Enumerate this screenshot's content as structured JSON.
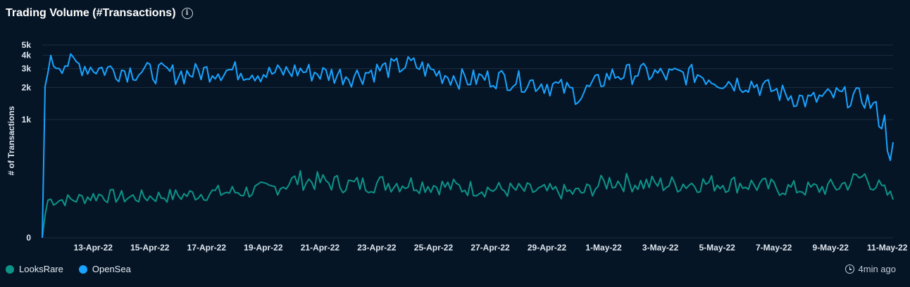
{
  "header": {
    "title": "Trading Volume (#Transactions)",
    "info_icon": "info-icon"
  },
  "updated": {
    "icon": "clock-icon",
    "label": "4min ago"
  },
  "chart_data": {
    "type": "line",
    "title": "Trading Volume (#Transactions)",
    "ylabel": "# of Transactions",
    "xlabel": "",
    "y_scale": "log-like (0 baseline, 1k–5k log ticks)",
    "y_ticks": [
      "0",
      "1k",
      "2k",
      "3k",
      "4k",
      "5k"
    ],
    "x_ticks": [
      "13-Apr-22",
      "15-Apr-22",
      "17-Apr-22",
      "19-Apr-22",
      "21-Apr-22",
      "23-Apr-22",
      "25-Apr-22",
      "27-Apr-22",
      "29-Apr-22",
      "1-May-22",
      "3-May-22",
      "5-May-22",
      "7-May-22",
      "9-May-22",
      "11-May-22"
    ],
    "x_range": [
      "2022-04-12",
      "2022-05-12"
    ],
    "grid": true,
    "legend_position": "bottom-left",
    "series": [
      {
        "name": "LooksRare",
        "color": "#0d9488",
        "x": [
          "2022-04-12",
          "2022-04-13",
          "2022-04-14",
          "2022-04-15",
          "2022-04-16",
          "2022-04-17",
          "2022-04-18",
          "2022-04-19",
          "2022-04-20",
          "2022-04-21",
          "2022-04-22",
          "2022-04-23",
          "2022-04-24",
          "2022-04-25",
          "2022-04-26",
          "2022-04-27",
          "2022-04-28",
          "2022-04-29",
          "2022-04-30",
          "2022-05-01",
          "2022-05-02",
          "2022-05-03",
          "2022-05-04",
          "2022-05-05",
          "2022-05-06",
          "2022-05-07",
          "2022-05-08",
          "2022-05-09",
          "2022-05-10",
          "2022-05-11",
          "2022-05-12"
        ],
        "values": [
          0,
          320,
          360,
          340,
          350,
          360,
          380,
          390,
          410,
          490,
          470,
          450,
          460,
          460,
          440,
          420,
          410,
          400,
          390,
          380,
          480,
          460,
          450,
          460,
          460,
          450,
          420,
          410,
          430,
          520,
          330
        ]
      },
      {
        "name": "OpenSea",
        "color": "#1aa3ff",
        "x": [
          "2022-04-12",
          "2022-04-13",
          "2022-04-14",
          "2022-04-15",
          "2022-04-16",
          "2022-04-17",
          "2022-04-18",
          "2022-04-19",
          "2022-04-20",
          "2022-04-21",
          "2022-04-22",
          "2022-04-23",
          "2022-04-24",
          "2022-04-25",
          "2022-04-26",
          "2022-04-27",
          "2022-04-28",
          "2022-04-29",
          "2022-04-30",
          "2022-05-01",
          "2022-05-02",
          "2022-05-03",
          "2022-05-04",
          "2022-05-05",
          "2022-05-06",
          "2022-05-07",
          "2022-05-08",
          "2022-05-09",
          "2022-05-10",
          "2022-05-11",
          "2022-05-12"
        ],
        "values": [
          0,
          3400,
          3000,
          2900,
          2800,
          2700,
          2900,
          2900,
          2700,
          2900,
          2700,
          2600,
          3000,
          3300,
          2700,
          2400,
          2500,
          2300,
          2100,
          1700,
          2600,
          2800,
          2600,
          2700,
          2300,
          2200,
          1800,
          1500,
          1700,
          1600,
          700
        ]
      }
    ]
  },
  "legend": {
    "items": [
      {
        "name": "LooksRare",
        "color": "#0d9488"
      },
      {
        "name": "OpenSea",
        "color": "#1aa3ff"
      }
    ]
  }
}
